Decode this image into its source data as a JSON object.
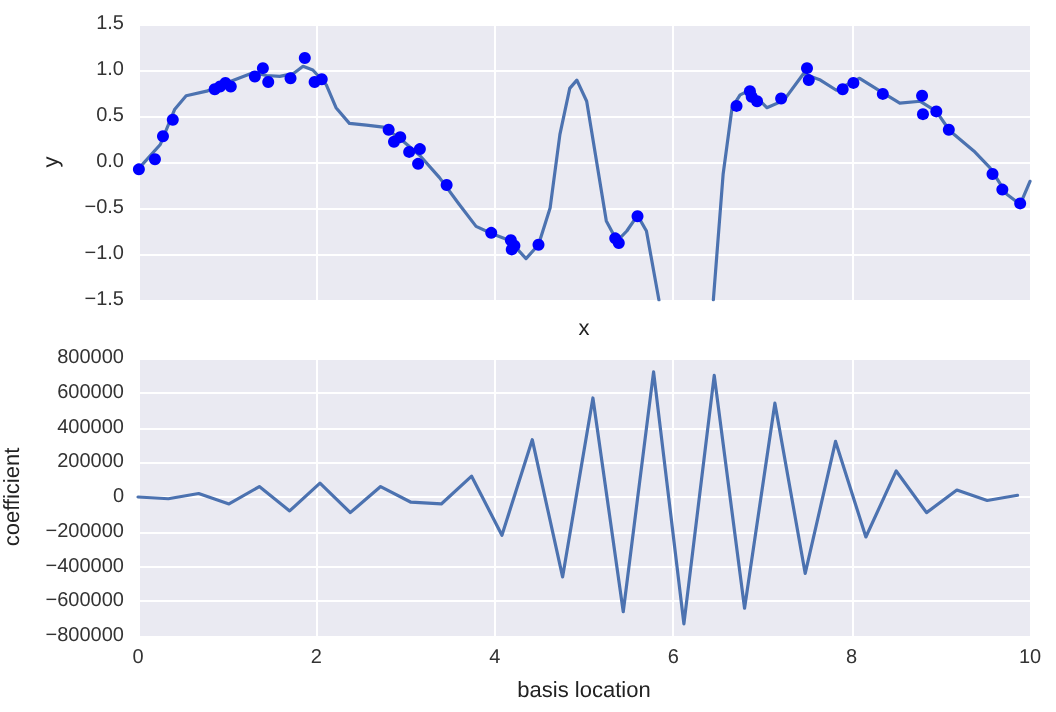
{
  "chart_data": [
    {
      "type": "scatter",
      "xlabel": "x",
      "ylabel": "y",
      "xlim": [
        0,
        10
      ],
      "ylim": [
        -1.5,
        1.5
      ],
      "xticks": [
        {
          "value": 0,
          "label": null
        },
        {
          "value": 2,
          "label": null
        },
        {
          "value": 4,
          "label": null
        },
        {
          "value": 6,
          "label": null
        },
        {
          "value": 8,
          "label": null
        },
        {
          "value": 10,
          "label": null
        }
      ],
      "yticks": [
        -1.5,
        {
          "value": -1,
          "label": "−1.0"
        },
        -0.5,
        {
          "value": 0,
          "label": "0.0"
        },
        0.5,
        {
          "value": 1,
          "label": "1.0"
        },
        1.5
      ],
      "grid": true,
      "tick_labels": "y",
      "series": [
        {
          "type": "scatter",
          "marker": "circle",
          "color": "#0000ff",
          "x": [
            0.01,
            0.19,
            0.28,
            0.39,
            0.86,
            0.92,
            0.98,
            1.04,
            1.31,
            1.4,
            1.46,
            1.71,
            1.87,
            1.98,
            2.06,
            2.81,
            2.87,
            2.94,
            3.04,
            3.14,
            3.16,
            3.46,
            3.96,
            4.18,
            4.19,
            4.22,
            4.49,
            5.35,
            5.39,
            5.6,
            6.71,
            6.86,
            6.88,
            6.94,
            7.21,
            7.5,
            7.52,
            7.9,
            8.02,
            8.35,
            8.79,
            8.8,
            8.95,
            9.09,
            9.58,
            9.69,
            9.89
          ],
          "values": [
            -0.08,
            0.03,
            0.28,
            0.46,
            0.79,
            0.82,
            0.86,
            0.82,
            0.93,
            1.02,
            0.87,
            0.91,
            1.13,
            0.87,
            0.9,
            0.35,
            0.22,
            0.27,
            0.11,
            -0.02,
            0.14,
            -0.25,
            -0.77,
            -0.85,
            -0.95,
            -0.91,
            -0.9,
            -0.83,
            -0.88,
            -0.59,
            0.61,
            0.77,
            0.71,
            0.66,
            0.69,
            1.02,
            0.89,
            0.79,
            0.86,
            0.74,
            0.72,
            0.52,
            0.55,
            0.35,
            -0.13,
            -0.3,
            -0.45
          ]
        },
        {
          "type": "line",
          "marker": "none",
          "line_style": "solid",
          "color": "#4c72b0",
          "x": [
            0,
            0.25,
            0.41,
            0.54,
            0.77,
            0.99,
            1.29,
            1.44,
            1.59,
            1.74,
            1.85,
            1.96,
            2.11,
            2.22,
            2.37,
            2.56,
            2.75,
            2.93,
            3.16,
            3.38,
            3.6,
            3.79,
            3.97,
            4.16,
            4.35,
            4.49,
            4.62,
            4.73,
            4.84,
            4.92,
            5.03,
            5.14,
            5.25,
            5.37,
            5.48,
            5.6,
            5.7,
            5.84,
            6.1,
            6.45,
            6.56,
            6.66,
            6.75,
            6.86,
            7.05,
            7.24,
            7.46,
            7.65,
            7.83,
            8.09,
            8.32,
            8.54,
            8.77,
            8.95,
            9.1,
            9.37,
            9.55,
            9.74,
            9.89,
            10
          ],
          "values": [
            -0.08,
            0.19,
            0.57,
            0.72,
            0.77,
            0.86,
            0.97,
            0.94,
            0.93,
            0.96,
            1.04,
            1.0,
            0.84,
            0.59,
            0.42,
            0.4,
            0.38,
            0.26,
            0.07,
            -0.17,
            -0.46,
            -0.7,
            -0.78,
            -0.85,
            -1.05,
            -0.9,
            -0.5,
            0.3,
            0.8,
            0.89,
            0.66,
            0.01,
            -0.64,
            -0.86,
            -0.75,
            -0.58,
            -0.75,
            -1.5,
            null,
            -1.5,
            -0.13,
            0.59,
            0.73,
            0.78,
            0.59,
            0.67,
            0.96,
            0.89,
            0.78,
            0.91,
            0.77,
            0.64,
            0.66,
            0.55,
            0.34,
            0.12,
            -0.06,
            -0.35,
            -0.46,
            -0.21
          ]
        }
      ]
    },
    {
      "type": "line",
      "xlabel": "basis location",
      "ylabel": "coefficient",
      "xlim": [
        0,
        10
      ],
      "ylim": [
        -800000,
        800000
      ],
      "xticks": [
        0,
        2,
        4,
        6,
        8,
        10
      ],
      "yticks": [
        -800000,
        -600000,
        -400000,
        -200000,
        0,
        200000,
        400000,
        600000,
        800000
      ],
      "grid": true,
      "marker": "none",
      "line_style": "solid",
      "series": [
        {
          "color": "#4c72b0",
          "x": [
            0,
            0.34,
            0.68,
            1.02,
            1.36,
            1.7,
            2.04,
            2.38,
            2.72,
            3.06,
            3.4,
            3.74,
            4.08,
            4.42,
            4.76,
            5.1,
            5.44,
            5.78,
            6.12,
            6.46,
            6.8,
            7.14,
            7.48,
            7.82,
            8.16,
            8.5,
            8.84,
            9.18,
            9.52,
            9.86
          ],
          "values": [
            0,
            -10000,
            20000,
            -40000,
            60000,
            -80000,
            80000,
            -90000,
            60000,
            -30000,
            -40000,
            120000,
            -220000,
            330000,
            -460000,
            570000,
            -660000,
            720000,
            -730000,
            700000,
            -640000,
            540000,
            -440000,
            320000,
            -230000,
            150000,
            -90000,
            40000,
            -20000,
            10000
          ]
        }
      ]
    }
  ]
}
